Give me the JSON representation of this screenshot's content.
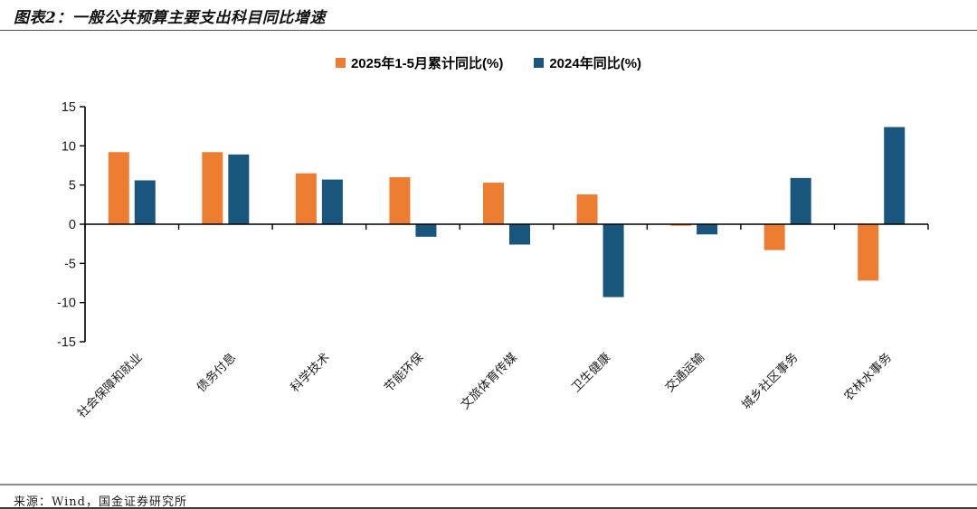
{
  "header": {
    "title": "图表2：一般公共预算主要支出科目同比增速"
  },
  "footer": {
    "source": "来源：Wind，国金证券研究所"
  },
  "colors": {
    "series_orange": "#ED7D31",
    "series_blue": "#18567D",
    "axis": "#000000",
    "divider_gray": "#8C8C8C"
  },
  "chart_data": {
    "type": "bar",
    "title": "一般公共预算主要支出科目同比增速",
    "categories": [
      "社会保障和就业",
      "债务付息",
      "科学技术",
      "节能环保",
      "文旅体育传媒",
      "卫生健康",
      "交通运输",
      "城乡社区事务",
      "农林水事务"
    ],
    "series": [
      {
        "name": "2025年1-5月累计同比(%)",
        "color": "#ED7D31",
        "values": [
          9.2,
          9.2,
          6.5,
          6.0,
          5.3,
          3.8,
          -0.2,
          -3.3,
          -7.2
        ]
      },
      {
        "name": "2024年同比(%)",
        "color": "#18567D",
        "values": [
          5.6,
          8.9,
          5.7,
          -1.6,
          -2.6,
          -9.3,
          -1.3,
          5.9,
          12.4
        ]
      }
    ],
    "xlabel": "",
    "ylabel": "",
    "ylim": [
      -15,
      15
    ],
    "yticks": [
      15,
      10,
      5,
      0,
      -5,
      -10,
      -15
    ],
    "grid": false,
    "legend_position": "top-center",
    "category_label_rotation_deg": -45
  }
}
